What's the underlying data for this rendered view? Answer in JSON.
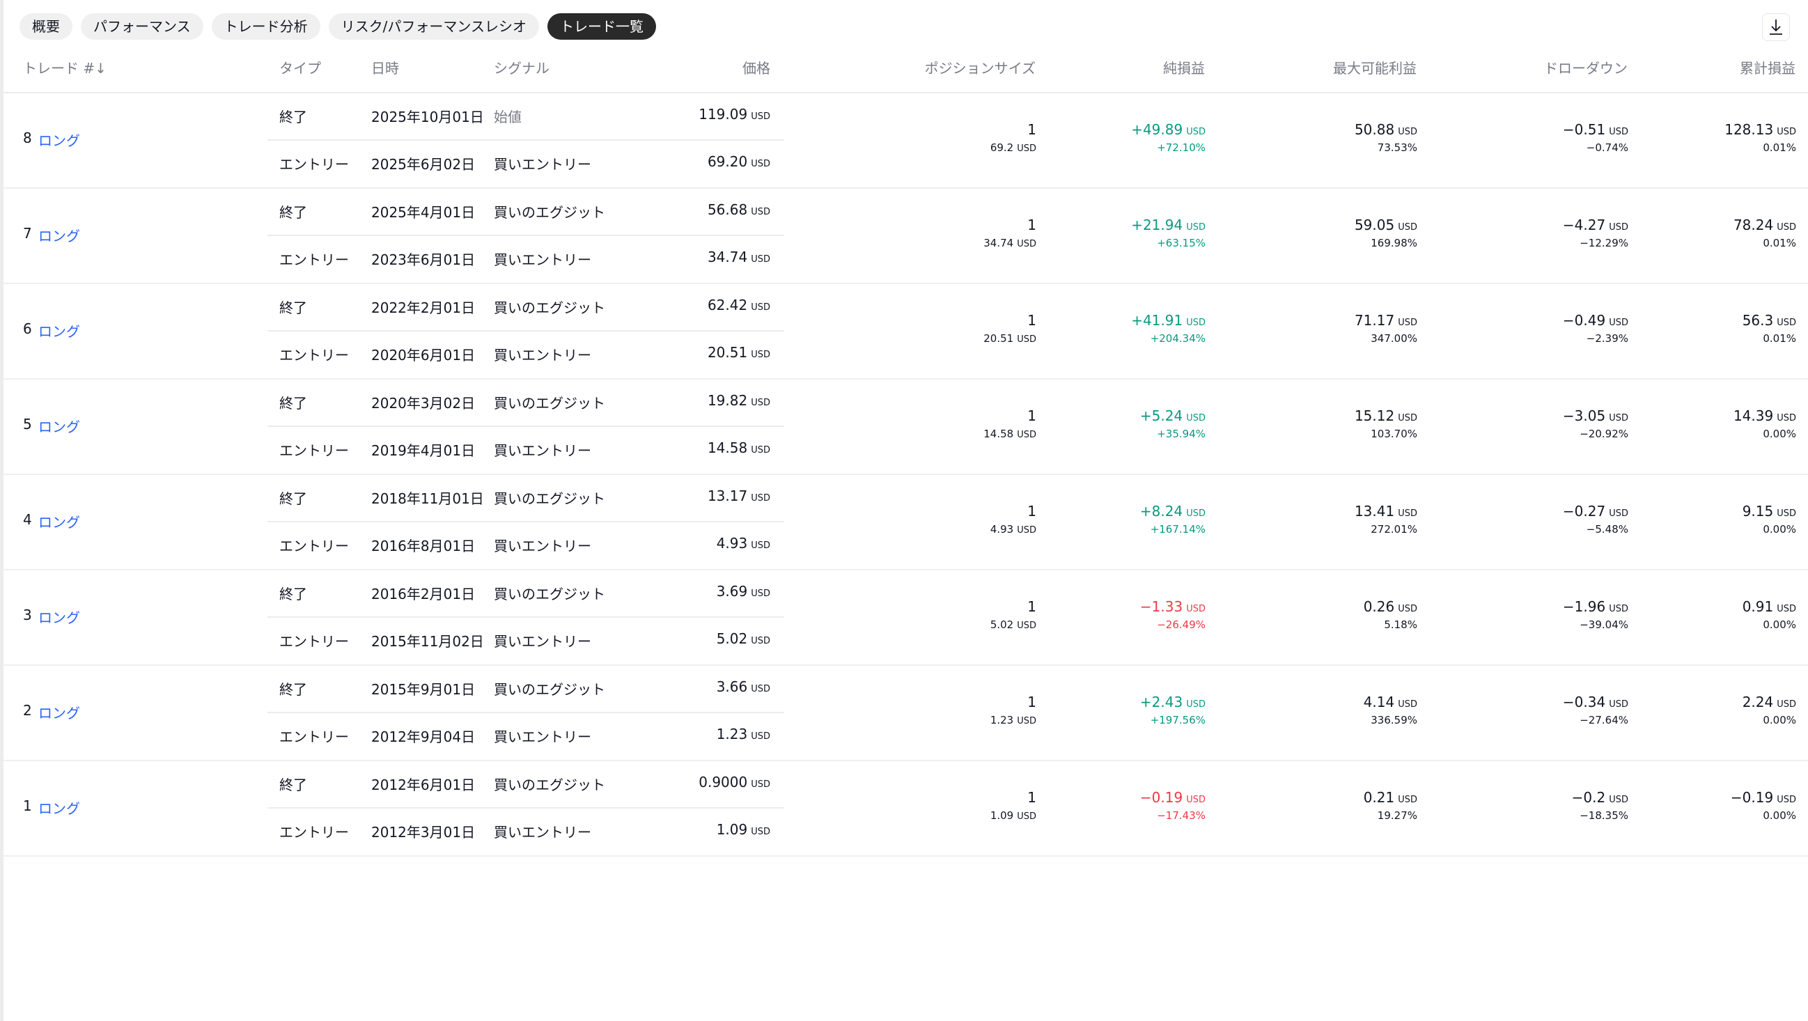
{
  "tabs": [
    {
      "label": "概要"
    },
    {
      "label": "パフォーマンス"
    },
    {
      "label": "トレード分析"
    },
    {
      "label": "リスク/パフォーマンスレシオ"
    },
    {
      "label": "トレード一覧",
      "active": true
    }
  ],
  "download_icon": "download-icon",
  "colors": {
    "positive": "#089981",
    "negative": "#f23645",
    "link": "#2962ff",
    "active_tab": "#2a2a2a"
  },
  "headers": {
    "trade": "トレード #↓",
    "type": "タイプ",
    "date": "日時",
    "signal": "シグナル",
    "price": "価格",
    "position": "ポジションサイズ",
    "net": "純損益",
    "max_profit": "最大可能利益",
    "drawdown": "ドローダウン",
    "cumulative": "累計損益"
  },
  "currency": "USD",
  "trades": [
    {
      "no": "8",
      "side": "ロング",
      "exit": {
        "type": "終了",
        "date": "2025年10月01日",
        "signal": "始値",
        "price": "119.09"
      },
      "entry": {
        "type": "エントリー",
        "date": "2025年6月02日",
        "signal": "買いエントリー",
        "price": "69.20"
      },
      "qty": "1",
      "value": "69.2",
      "net": "+49.89",
      "net_pct": "+72.10%",
      "max": "50.88",
      "max_pct": "73.53%",
      "dd": "−0.51",
      "dd_pct": "−0.74%",
      "cum": "128.13",
      "cum_pct": "0.01%"
    },
    {
      "no": "7",
      "side": "ロング",
      "exit": {
        "type": "終了",
        "date": "2025年4月01日",
        "signal": "買いのエグジット",
        "price": "56.68"
      },
      "entry": {
        "type": "エントリー",
        "date": "2023年6月01日",
        "signal": "買いエントリー",
        "price": "34.74"
      },
      "qty": "1",
      "value": "34.74",
      "net": "+21.94",
      "net_pct": "+63.15%",
      "max": "59.05",
      "max_pct": "169.98%",
      "dd": "−4.27",
      "dd_pct": "−12.29%",
      "cum": "78.24",
      "cum_pct": "0.01%"
    },
    {
      "no": "6",
      "side": "ロング",
      "exit": {
        "type": "終了",
        "date": "2022年2月01日",
        "signal": "買いのエグジット",
        "price": "62.42"
      },
      "entry": {
        "type": "エントリー",
        "date": "2020年6月01日",
        "signal": "買いエントリー",
        "price": "20.51"
      },
      "qty": "1",
      "value": "20.51",
      "net": "+41.91",
      "net_pct": "+204.34%",
      "max": "71.17",
      "max_pct": "347.00%",
      "dd": "−0.49",
      "dd_pct": "−2.39%",
      "cum": "56.3",
      "cum_pct": "0.01%"
    },
    {
      "no": "5",
      "side": "ロング",
      "exit": {
        "type": "終了",
        "date": "2020年3月02日",
        "signal": "買いのエグジット",
        "price": "19.82"
      },
      "entry": {
        "type": "エントリー",
        "date": "2019年4月01日",
        "signal": "買いエントリー",
        "price": "14.58"
      },
      "qty": "1",
      "value": "14.58",
      "net": "+5.24",
      "net_pct": "+35.94%",
      "max": "15.12",
      "max_pct": "103.70%",
      "dd": "−3.05",
      "dd_pct": "−20.92%",
      "cum": "14.39",
      "cum_pct": "0.00%"
    },
    {
      "no": "4",
      "side": "ロング",
      "exit": {
        "type": "終了",
        "date": "2018年11月01日",
        "signal": "買いのエグジット",
        "price": "13.17"
      },
      "entry": {
        "type": "エントリー",
        "date": "2016年8月01日",
        "signal": "買いエントリー",
        "price": "4.93"
      },
      "qty": "1",
      "value": "4.93",
      "net": "+8.24",
      "net_pct": "+167.14%",
      "max": "13.41",
      "max_pct": "272.01%",
      "dd": "−0.27",
      "dd_pct": "−5.48%",
      "cum": "9.15",
      "cum_pct": "0.00%"
    },
    {
      "no": "3",
      "side": "ロング",
      "exit": {
        "type": "終了",
        "date": "2016年2月01日",
        "signal": "買いのエグジット",
        "price": "3.69"
      },
      "entry": {
        "type": "エントリー",
        "date": "2015年11月02日",
        "signal": "買いエントリー",
        "price": "5.02"
      },
      "qty": "1",
      "value": "5.02",
      "net": "−1.33",
      "net_pct": "−26.49%",
      "max": "0.26",
      "max_pct": "5.18%",
      "dd": "−1.96",
      "dd_pct": "−39.04%",
      "cum": "0.91",
      "cum_pct": "0.00%"
    },
    {
      "no": "2",
      "side": "ロング",
      "exit": {
        "type": "終了",
        "date": "2015年9月01日",
        "signal": "買いのエグジット",
        "price": "3.66"
      },
      "entry": {
        "type": "エントリー",
        "date": "2012年9月04日",
        "signal": "買いエントリー",
        "price": "1.23"
      },
      "qty": "1",
      "value": "1.23",
      "net": "+2.43",
      "net_pct": "+197.56%",
      "max": "4.14",
      "max_pct": "336.59%",
      "dd": "−0.34",
      "dd_pct": "−27.64%",
      "cum": "2.24",
      "cum_pct": "0.00%"
    },
    {
      "no": "1",
      "side": "ロング",
      "exit": {
        "type": "終了",
        "date": "2012年6月01日",
        "signal": "買いのエグジット",
        "price": "0.9000"
      },
      "entry": {
        "type": "エントリー",
        "date": "2012年3月01日",
        "signal": "買いエントリー",
        "price": "1.09"
      },
      "qty": "1",
      "value": "1.09",
      "net": "−0.19",
      "net_pct": "−17.43%",
      "max": "0.21",
      "max_pct": "19.27%",
      "dd": "−0.2",
      "dd_pct": "−18.35%",
      "cum": "−0.19",
      "cum_pct": "0.00%"
    }
  ]
}
